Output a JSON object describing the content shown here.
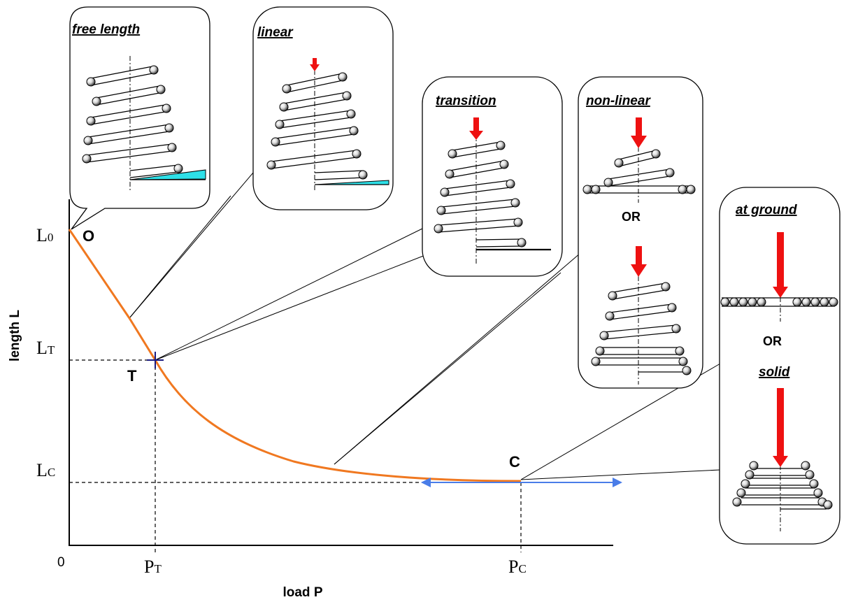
{
  "axes": {
    "y_label": "length L",
    "x_label": "load P",
    "origin_label": "0",
    "y_ticks": [
      {
        "main": "L",
        "sub": "0"
      },
      {
        "main": "L",
        "sub": "T"
      },
      {
        "main": "L",
        "sub": "C"
      }
    ],
    "x_ticks": [
      {
        "main": "P",
        "sub": "T"
      },
      {
        "main": "P",
        "sub": "C"
      }
    ]
  },
  "points": {
    "O": "O",
    "T": "T",
    "C": "C"
  },
  "stages": {
    "free_length": "free length",
    "linear": "linear",
    "transition": "transition",
    "non_linear": "non-linear",
    "at_ground": "at ground",
    "solid": "solid",
    "or_label": "OR"
  },
  "colors": {
    "curve": "#f07820",
    "arrow_blue": "#4a7de8",
    "load_arrow": "#ee1111",
    "wedge": "#2ee0e8",
    "crosshair": "#1a1a80"
  }
}
